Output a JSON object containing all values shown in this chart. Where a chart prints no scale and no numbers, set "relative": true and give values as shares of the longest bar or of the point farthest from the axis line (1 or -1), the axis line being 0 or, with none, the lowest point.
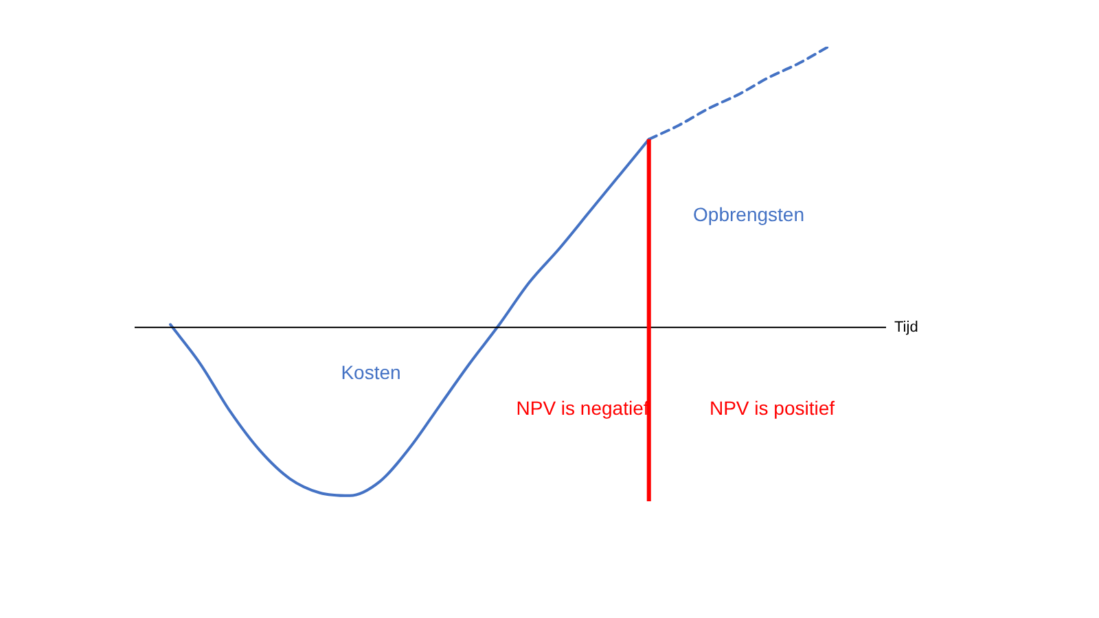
{
  "chart_data": {
    "type": "line",
    "relative": true,
    "xlabel": "Tijd",
    "categories": [
      null,
      null,
      null,
      null,
      null,
      null,
      null,
      null,
      null,
      null,
      null,
      null,
      null,
      null,
      null,
      null,
      null,
      null,
      null,
      null,
      null,
      null,
      null
    ],
    "series": [
      {
        "color": "#4472c4",
        "line_style": "solid",
        "values": [
          0.01,
          -0.13,
          -0.3,
          -0.44,
          -0.54,
          -0.59,
          -0.6,
          -0.55,
          -0.43,
          -0.28,
          -0.13,
          0.01,
          0.16,
          0.28,
          0.41,
          0.54,
          0.67,
          null,
          null,
          null,
          null,
          null,
          null
        ]
      },
      {
        "color": "#4472c4",
        "line_style": "dashed",
        "values": [
          null,
          null,
          null,
          null,
          null,
          null,
          null,
          null,
          null,
          null,
          null,
          null,
          null,
          null,
          null,
          null,
          0.67,
          0.72,
          0.78,
          0.83,
          0.89,
          0.94,
          1.0
        ]
      }
    ],
    "annotations": [
      "Kosten",
      "Opbrengsten",
      "NPV is negatief",
      "NPV is positief"
    ],
    "marker": "none",
    "legend": false
  }
}
